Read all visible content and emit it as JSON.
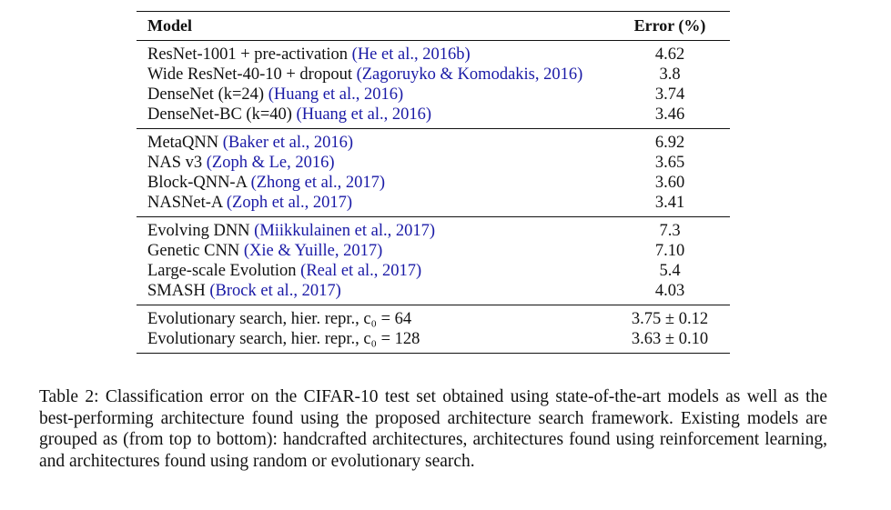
{
  "table": {
    "header": {
      "model": "Model",
      "error": "Error (%)"
    },
    "groups": [
      {
        "rows": [
          {
            "model": "ResNet-1001 + pre-activation",
            "cite": "(He et al., 2016b)",
            "error": "4.62"
          },
          {
            "model": "Wide ResNet-40-10 + dropout",
            "cite": "(Zagoruyko & Komodakis, 2016)",
            "error": "3.8"
          },
          {
            "model": "DenseNet (k=24)",
            "cite": "(Huang et al., 2016)",
            "error": "3.74"
          },
          {
            "model": "DenseNet-BC (k=40)",
            "cite": "(Huang et al., 2016)",
            "error": "3.46"
          }
        ]
      },
      {
        "rows": [
          {
            "model": "MetaQNN",
            "cite": "(Baker et al., 2016)",
            "error": "6.92"
          },
          {
            "model": "NAS v3",
            "cite": "(Zoph & Le, 2016)",
            "error": "3.65"
          },
          {
            "model": "Block-QNN-A",
            "cite": "(Zhong et al., 2017)",
            "error": "3.60"
          },
          {
            "model": "NASNet-A",
            "cite": "(Zoph et al., 2017)",
            "error": "3.41"
          }
        ]
      },
      {
        "rows": [
          {
            "model": "Evolving DNN",
            "cite": "(Miikkulainen et al., 2017)",
            "error": "7.3"
          },
          {
            "model": "Genetic CNN",
            "cite": "(Xie & Yuille, 2017)",
            "error": "7.10"
          },
          {
            "model": "Large-scale Evolution",
            "cite": "(Real et al., 2017)",
            "error": "5.4"
          },
          {
            "model": "SMASH",
            "cite": "(Brock et al., 2017)",
            "error": "4.03"
          }
        ]
      },
      {
        "rows": [
          {
            "model": "Evolutionary search, hier. repr., c₀ = 64",
            "cite": "",
            "error": "3.75 ± 0.12"
          },
          {
            "model": "Evolutionary search, hier. repr., c₀ = 128",
            "cite": "",
            "error": "3.63 ± 0.10"
          }
        ]
      }
    ]
  },
  "caption": "Table 2: Classification error on the CIFAR-10 test set obtained using state-of-the-art models as well as the best-performing architecture found using the proposed architecture search framework. Existing models are grouped as (from top to bottom): handcrafted architectures, architectures found using reinforcement learning, and architectures found using random or evolutionary search."
}
